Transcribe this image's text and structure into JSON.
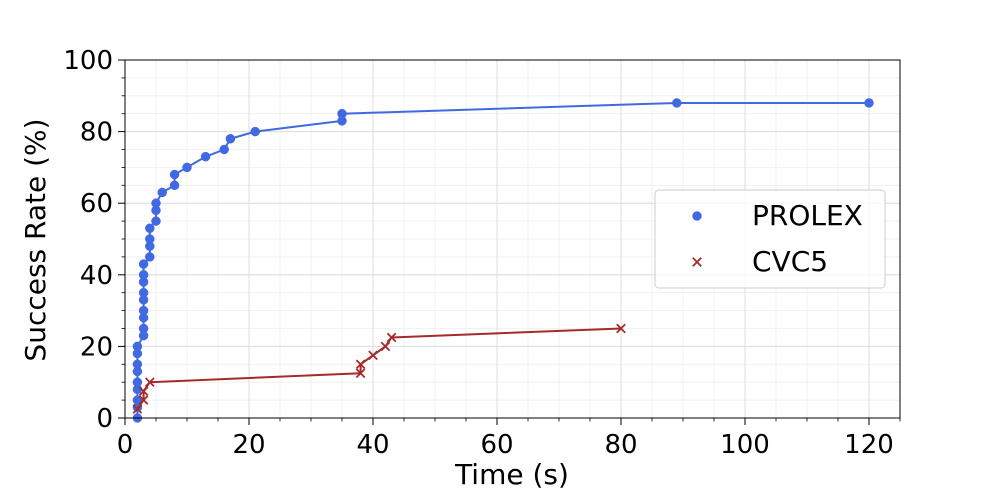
{
  "chart_data": {
    "type": "line",
    "title": "",
    "xlabel": "Time (s)",
    "ylabel": "Success Rate (%)",
    "xlim": [
      0,
      125
    ],
    "ylim": [
      0,
      100
    ],
    "xticks": [
      0,
      20,
      40,
      60,
      80,
      100,
      120
    ],
    "yticks": [
      0,
      20,
      40,
      60,
      80,
      100
    ],
    "grid": true,
    "legend_position": "center-right",
    "series": [
      {
        "name": "PROLEX",
        "color": "#4169e1",
        "marker": "circle",
        "points": [
          [
            2,
            0
          ],
          [
            2,
            3
          ],
          [
            2,
            5
          ],
          [
            2,
            8
          ],
          [
            2,
            10
          ],
          [
            2,
            13
          ],
          [
            2,
            15
          ],
          [
            2,
            18
          ],
          [
            2,
            20
          ],
          [
            3,
            23
          ],
          [
            3,
            25
          ],
          [
            3,
            28
          ],
          [
            3,
            30
          ],
          [
            3,
            33
          ],
          [
            3,
            35
          ],
          [
            3,
            38
          ],
          [
            3,
            40
          ],
          [
            3,
            43
          ],
          [
            4,
            45
          ],
          [
            4,
            48
          ],
          [
            4,
            50
          ],
          [
            4,
            53
          ],
          [
            5,
            55
          ],
          [
            5,
            58
          ],
          [
            5,
            60
          ],
          [
            6,
            63
          ],
          [
            8,
            65
          ],
          [
            8,
            68
          ],
          [
            10,
            70
          ],
          [
            13,
            73
          ],
          [
            16,
            75
          ],
          [
            17,
            78
          ],
          [
            21,
            80
          ],
          [
            35,
            83
          ],
          [
            35,
            85
          ],
          [
            89,
            88
          ],
          [
            120,
            88
          ]
        ]
      },
      {
        "name": "CVC5",
        "color": "#a52a2a",
        "marker": "x",
        "points": [
          [
            2,
            2.5
          ],
          [
            3,
            5
          ],
          [
            3,
            7.5
          ],
          [
            4,
            10
          ],
          [
            38,
            12.5
          ],
          [
            38,
            15
          ],
          [
            40,
            17.5
          ],
          [
            42,
            20
          ],
          [
            43,
            22.5
          ],
          [
            80,
            25
          ]
        ]
      }
    ]
  }
}
